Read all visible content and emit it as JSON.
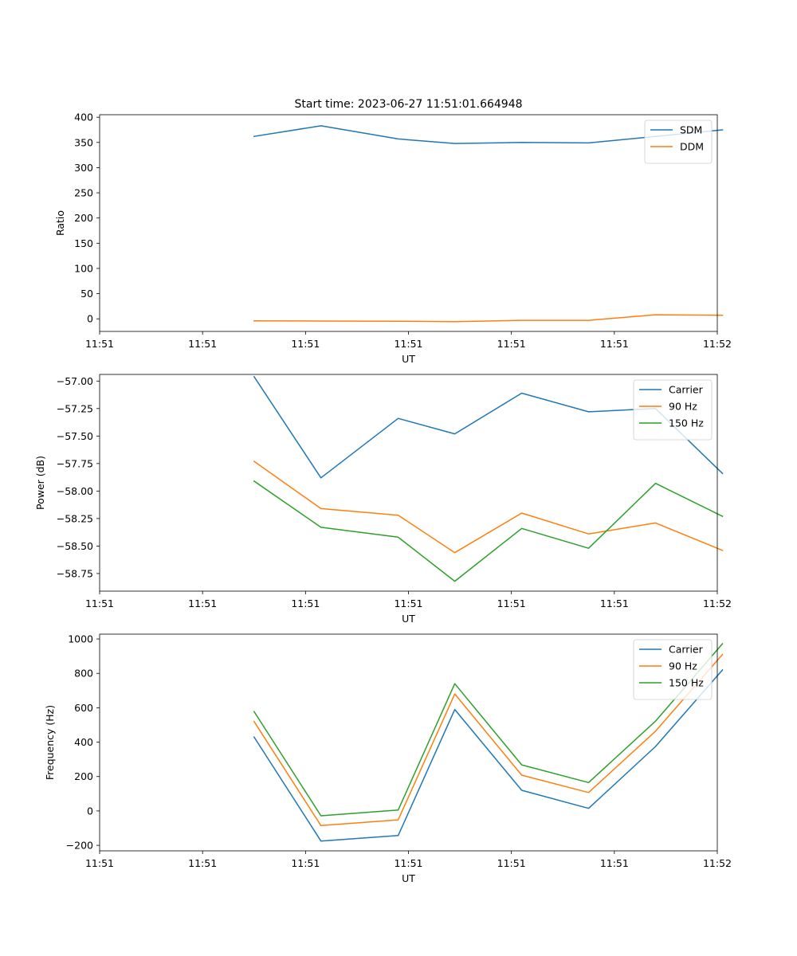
{
  "chart_data": [
    {
      "type": "line",
      "title": "Start time: 2023-06-27 11:51:01.664948",
      "xlabel": "UT",
      "ylabel": "Ratio",
      "x_tick_labels": [
        "11:51",
        "11:51",
        "11:51",
        "11:51",
        "11:51",
        "11:51",
        "11:52"
      ],
      "x": [
        1.5,
        2.15,
        2.9,
        3.45,
        4.1,
        4.75,
        5.4,
        6.05
      ],
      "xlim": [
        0,
        6
      ],
      "ylim": [
        -25,
        405
      ],
      "yticks": [
        0,
        50,
        100,
        150,
        200,
        250,
        300,
        350,
        400
      ],
      "grid": false,
      "legend": "top-right",
      "series": [
        {
          "name": "SDM",
          "color": "#1f77b4",
          "values": [
            362,
            383,
            357,
            348,
            350,
            349,
            362,
            375
          ]
        },
        {
          "name": "DDM",
          "color": "#ff7f0e",
          "values": [
            -4,
            -4.5,
            -4.8,
            -5.5,
            -3,
            -3,
            8,
            7
          ]
        }
      ]
    },
    {
      "type": "line",
      "title": "",
      "xlabel": "UT",
      "ylabel": "Power (dB)",
      "x_tick_labels": [
        "11:51",
        "11:51",
        "11:51",
        "11:51",
        "11:51",
        "11:51",
        "11:52"
      ],
      "x": [
        1.5,
        2.15,
        2.9,
        3.45,
        4.1,
        4.75,
        5.4,
        6.05
      ],
      "xlim": [
        0,
        6
      ],
      "ylim": [
        -58.91,
        -56.94
      ],
      "yticks": [
        -57.0,
        -57.25,
        -57.5,
        -57.75,
        -58.0,
        -58.25,
        -58.5,
        -58.75
      ],
      "ytick_labels": [
        "−57.00",
        "−57.25",
        "−57.50",
        "−57.75",
        "−58.00",
        "−58.25",
        "−58.50",
        "−58.75"
      ],
      "grid": false,
      "legend": "top-right",
      "series": [
        {
          "name": "Carrier",
          "color": "#1f77b4",
          "values": [
            -56.96,
            -57.88,
            -57.34,
            -57.48,
            -57.11,
            -57.28,
            -57.25,
            -57.84
          ]
        },
        {
          "name": "90 Hz",
          "color": "#ff7f0e",
          "values": [
            -57.73,
            -58.16,
            -58.22,
            -58.56,
            -58.2,
            -58.39,
            -58.29,
            -58.54
          ]
        },
        {
          "name": "150 Hz",
          "color": "#2ca02c",
          "values": [
            -57.91,
            -58.33,
            -58.42,
            -58.82,
            -58.34,
            -58.52,
            -57.93,
            -58.23
          ]
        }
      ]
    },
    {
      "type": "line",
      "title": "",
      "xlabel": "UT",
      "ylabel": "Frequency (Hz)",
      "x_tick_labels": [
        "11:51",
        "11:51",
        "11:51",
        "11:51",
        "11:51",
        "11:51",
        "11:52"
      ],
      "x": [
        1.5,
        2.15,
        2.9,
        3.45,
        4.1,
        4.75,
        5.4,
        6.05
      ],
      "xlim": [
        0,
        6
      ],
      "ylim": [
        -232,
        1028
      ],
      "yticks": [
        -200,
        0,
        200,
        400,
        600,
        800,
        1000
      ],
      "ytick_labels": [
        "−200",
        "0",
        "200",
        "400",
        "600",
        "800",
        "1000"
      ],
      "grid": false,
      "legend": "top-right",
      "series": [
        {
          "name": "Carrier",
          "color": "#1f77b4",
          "values": [
            430,
            -175,
            -143,
            590,
            120,
            15,
            375,
            820
          ]
        },
        {
          "name": "90 Hz",
          "color": "#ff7f0e",
          "values": [
            520,
            -85,
            -52,
            680,
            208,
            107,
            464,
            910
          ]
        },
        {
          "name": "150 Hz",
          "color": "#2ca02c",
          "values": [
            578,
            -28,
            5,
            740,
            268,
            165,
            522,
            972
          ]
        }
      ]
    }
  ]
}
